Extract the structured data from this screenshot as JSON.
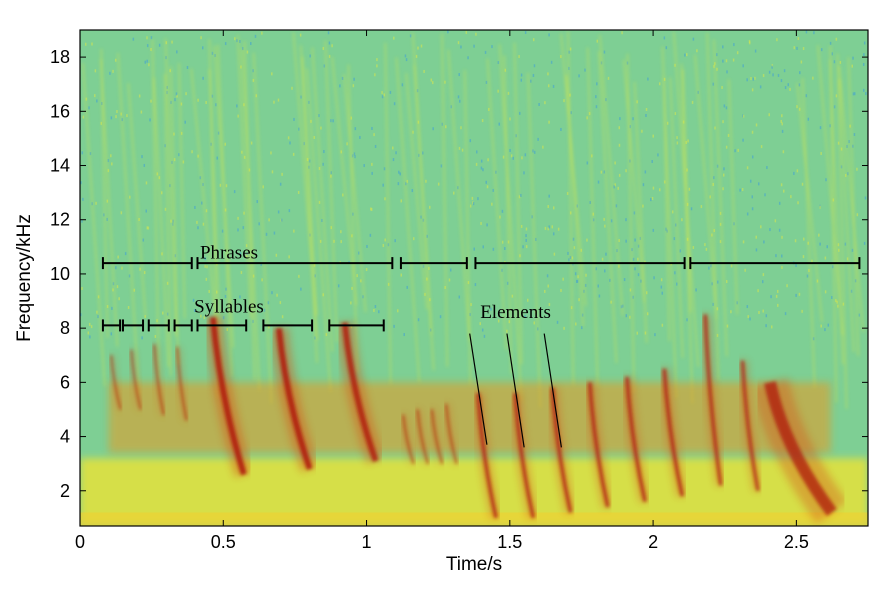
{
  "chart_data": {
    "type": "heatmap",
    "subtype": "spectrogram",
    "title": "",
    "xlabel": "Time/s",
    "ylabel": "Frequency/kHz",
    "xlim": [
      0,
      2.75
    ],
    "ylim": [
      0.7,
      19.0
    ],
    "x_ticks": [
      {
        "value": 0,
        "label": "0"
      },
      {
        "value": 0.5,
        "label": "0.5"
      },
      {
        "value": 1,
        "label": "1"
      },
      {
        "value": 1.5,
        "label": "1.5"
      },
      {
        "value": 2,
        "label": "2"
      },
      {
        "value": 2.5,
        "label": "2.5"
      }
    ],
    "y_ticks": [
      {
        "value": 2,
        "label": "2"
      },
      {
        "value": 4,
        "label": "4"
      },
      {
        "value": 6,
        "label": "6"
      },
      {
        "value": 8,
        "label": "8"
      },
      {
        "value": 10,
        "label": "10"
      },
      {
        "value": 12,
        "label": "12"
      },
      {
        "value": 14,
        "label": "14"
      },
      {
        "value": 16,
        "label": "16"
      },
      {
        "value": 18,
        "label": "18"
      }
    ],
    "grid": false,
    "colormap": [
      "#3fa0d6",
      "#66c8a8",
      "#9edb84",
      "#d8e84a",
      "#f0d030",
      "#e89a20",
      "#d45518",
      "#b01a10",
      "#7a0808"
    ],
    "background_color": "#7ecf94",
    "low_band_color": "#e6e23a",
    "phrases": {
      "label": "Phrases",
      "label_at": {
        "x": 0.52,
        "y": 10.8
      },
      "y": 10.4,
      "segments": [
        [
          0.08,
          0.39
        ],
        [
          0.41,
          1.09
        ],
        [
          1.12,
          1.35
        ],
        [
          1.38,
          2.11
        ],
        [
          2.13,
          2.72
        ]
      ]
    },
    "syllables": {
      "label": "Syllables",
      "label_at": {
        "x": 0.52,
        "y": 8.8
      },
      "y": 8.1,
      "segments": [
        [
          0.08,
          0.14
        ],
        [
          0.15,
          0.22
        ],
        [
          0.24,
          0.31
        ],
        [
          0.33,
          0.39
        ],
        [
          0.41,
          0.58
        ],
        [
          0.64,
          0.81
        ],
        [
          0.87,
          1.06
        ]
      ]
    },
    "elements": {
      "label": "Elements",
      "label_at": {
        "x": 1.52,
        "y": 8.6
      },
      "markers": [
        {
          "x_top": 1.36,
          "y_top": 7.8,
          "x_bottom": 1.42,
          "y_bottom": 3.7
        },
        {
          "x_top": 1.49,
          "y_top": 7.8,
          "x_bottom": 1.55,
          "y_bottom": 3.6
        },
        {
          "x_top": 1.62,
          "y_top": 7.8,
          "x_bottom": 1.68,
          "y_bottom": 3.6
        }
      ]
    },
    "sweeps": [
      {
        "t": 0.12,
        "f_top": 7.0,
        "f_bottom": 5.0,
        "w": 0.018,
        "s": 0.65
      },
      {
        "t": 0.19,
        "f_top": 7.2,
        "f_bottom": 5.0,
        "w": 0.018,
        "s": 0.65
      },
      {
        "t": 0.27,
        "f_top": 7.4,
        "f_bottom": 4.8,
        "w": 0.018,
        "s": 0.7
      },
      {
        "t": 0.35,
        "f_top": 7.3,
        "f_bottom": 4.6,
        "w": 0.018,
        "s": 0.7
      },
      {
        "t": 0.5,
        "f_top": 8.4,
        "f_bottom": 2.6,
        "w": 0.06,
        "s": 1.0
      },
      {
        "t": 0.73,
        "f_top": 8.0,
        "f_bottom": 2.8,
        "w": 0.06,
        "s": 1.0
      },
      {
        "t": 0.96,
        "f_top": 8.2,
        "f_bottom": 3.1,
        "w": 0.06,
        "s": 0.95
      },
      {
        "t": 1.14,
        "f_top": 4.8,
        "f_bottom": 3.0,
        "w": 0.02,
        "s": 0.7
      },
      {
        "t": 1.19,
        "f_top": 5.0,
        "f_bottom": 3.0,
        "w": 0.02,
        "s": 0.7
      },
      {
        "t": 1.24,
        "f_top": 5.0,
        "f_bottom": 3.0,
        "w": 0.02,
        "s": 0.7
      },
      {
        "t": 1.29,
        "f_top": 5.2,
        "f_bottom": 3.0,
        "w": 0.02,
        "s": 0.7
      },
      {
        "t": 1.41,
        "f_top": 5.6,
        "f_bottom": 1.0,
        "w": 0.035,
        "s": 0.9
      },
      {
        "t": 1.54,
        "f_top": 5.6,
        "f_bottom": 1.0,
        "w": 0.035,
        "s": 0.9
      },
      {
        "t": 1.67,
        "f_top": 5.8,
        "f_bottom": 1.2,
        "w": 0.035,
        "s": 0.9
      },
      {
        "t": 1.8,
        "f_top": 6.0,
        "f_bottom": 1.4,
        "w": 0.035,
        "s": 0.9
      },
      {
        "t": 1.93,
        "f_top": 6.2,
        "f_bottom": 1.6,
        "w": 0.035,
        "s": 0.9
      },
      {
        "t": 2.06,
        "f_top": 6.5,
        "f_bottom": 1.8,
        "w": 0.035,
        "s": 0.9
      },
      {
        "t": 2.2,
        "f_top": 8.5,
        "f_bottom": 2.2,
        "w": 0.03,
        "s": 0.95
      },
      {
        "t": 2.33,
        "f_top": 6.8,
        "f_bottom": 2.0,
        "w": 0.03,
        "s": 0.9
      },
      {
        "t": 2.48,
        "f_top": 6.0,
        "f_bottom": 1.2,
        "w": 0.12,
        "s": 0.85
      }
    ]
  }
}
